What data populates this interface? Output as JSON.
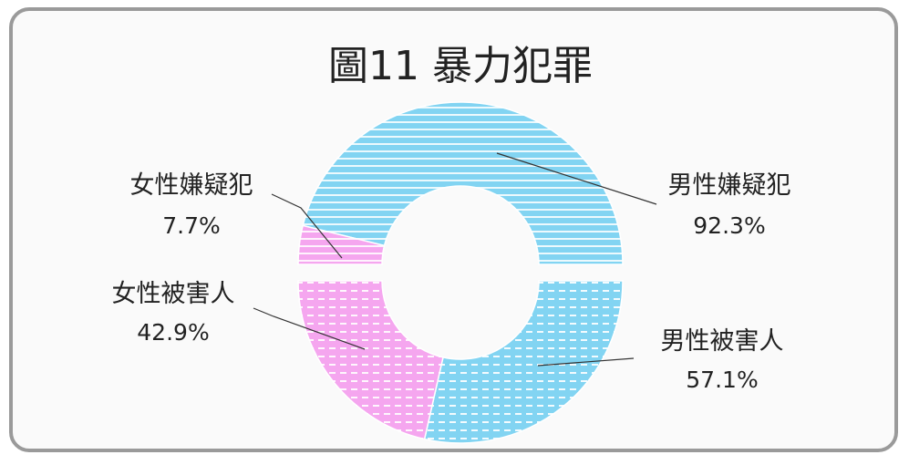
{
  "chart_data": {
    "type": "pie",
    "title": "圖11  暴力犯罪",
    "groups": [
      {
        "name": "嫌疑犯",
        "slices": [
          {
            "label": "男性嫌疑犯",
            "value": 92.3,
            "display": "92.3%",
            "color": "#82d4f2"
          },
          {
            "label": "女性嫌疑犯",
            "value": 7.7,
            "display": "7.7%",
            "color": "#f5a6ef"
          }
        ]
      },
      {
        "name": "被害人",
        "slices": [
          {
            "label": "男性被害人",
            "value": 57.1,
            "display": "57.1%",
            "color": "#82d4f2"
          },
          {
            "label": "女性被害人",
            "value": 42.9,
            "display": "42.9%",
            "color": "#f5a6ef"
          }
        ]
      }
    ]
  }
}
